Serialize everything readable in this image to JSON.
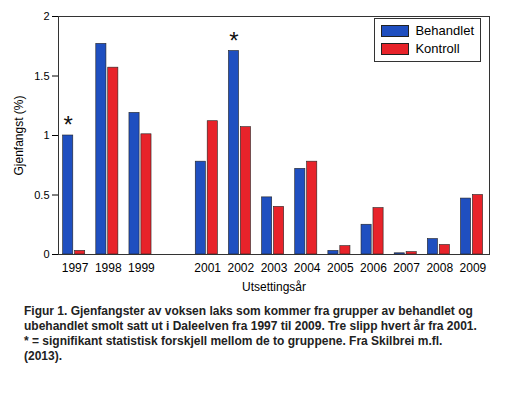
{
  "chart_data": {
    "type": "bar",
    "categories": [
      "1997",
      "1998",
      "1999",
      null,
      "2001",
      "2002",
      "2003",
      "2004",
      "2005",
      "2006",
      "2007",
      "2008",
      "2009"
    ],
    "series": [
      {
        "name": "Behandlet",
        "color": "#1f4fc0",
        "values": [
          1.0,
          1.77,
          1.19,
          null,
          0.78,
          1.71,
          0.48,
          0.72,
          0.03,
          0.25,
          0.01,
          0.13,
          0.47
        ]
      },
      {
        "name": "Kontroll",
        "color": "#e8232a",
        "values": [
          0.03,
          1.57,
          1.01,
          null,
          1.12,
          1.07,
          0.4,
          0.78,
          0.07,
          0.39,
          0.02,
          0.08,
          0.5
        ]
      }
    ],
    "x_label": "Utsettingsår",
    "y_label": "Gjenfangst (%)",
    "ylim": [
      0,
      2
    ],
    "yticks": [
      0,
      0.5,
      1,
      1.5,
      2
    ],
    "grid": false,
    "legend": "top-right",
    "annotations": [
      {
        "text": "*",
        "category": "1997"
      },
      {
        "text": "*",
        "category": "2002"
      }
    ],
    "caption": "Figur 1. Gjenfangster av voksen laks som kommer fra grupper av behandlet og ubehandlet smolt satt ut i Daleelven fra 1997 til 2009. Tre slipp hvert år fra 2001. * = signifikant statistisk forskjell mellom de to gruppene. Fra Skilbrei m.fl. (2013)."
  }
}
